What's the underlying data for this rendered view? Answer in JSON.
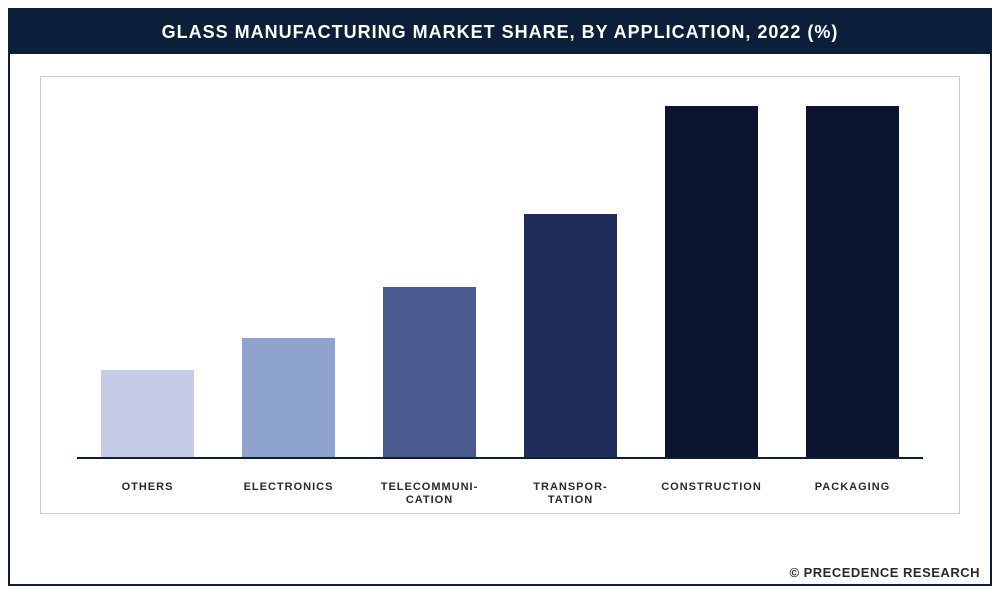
{
  "chart": {
    "type": "bar",
    "title": "GLASS MANUFACTURING MARKET SHARE, BY APPLICATION, 2022 (%)",
    "title_bg": "#0b1f3a",
    "title_color": "#ffffff",
    "title_fontsize": 18,
    "outer_border_color": "#0b1f3a",
    "plot_border_color": "#cccccc",
    "background_color": "#ffffff",
    "baseline_color": "#0b1f3a",
    "bar_width": 0.66,
    "ylim": [
      0,
      100
    ],
    "label_fontsize": 11,
    "label_color": "#2a2a2a",
    "categories": [
      {
        "label": "OTHERS",
        "value": 24,
        "color": "#c5cde6"
      },
      {
        "label": "ELECTRONICS",
        "value": 33,
        "color": "#8fa3cf"
      },
      {
        "label": "TELECOMMUNI-\nCATION",
        "value": 47,
        "color": "#4a5c8f"
      },
      {
        "label": "TRANSPOR-\nTATION",
        "value": 67,
        "color": "#1f2d5a"
      },
      {
        "label": "CONSTRUCTION",
        "value": 97,
        "color": "#0b1530"
      },
      {
        "label": "PACKAGING",
        "value": 97,
        "color": "#0b1530"
      }
    ],
    "credit": "© PRECEDENCE RESEARCH",
    "credit_fontsize": 13
  }
}
